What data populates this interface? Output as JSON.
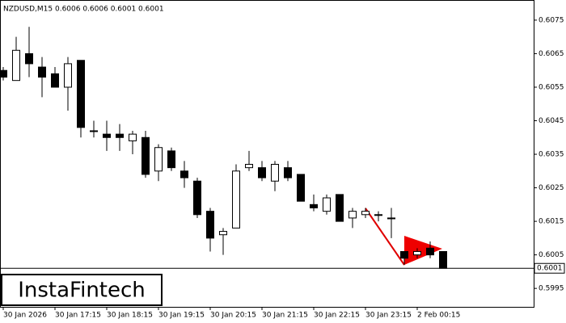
{
  "chart_data": {
    "type": "candlestick",
    "title": "NZDUSD,M15  0.6006 0.6006 0.6001 0.6001",
    "watermark": "InstaFintech",
    "current_price": 0.6001,
    "categories": [
      "30 Jan 2026",
      null,
      null,
      null,
      "30 Jan 17:15",
      null,
      null,
      null,
      "30 Jan 18:15",
      null,
      null,
      null,
      "30 Jan 19:15",
      null,
      null,
      null,
      "30 Jan 20:15",
      null,
      null,
      null,
      "30 Jan 21:15",
      null,
      null,
      null,
      "30 Jan 22:15",
      null,
      null,
      null,
      "30 Jan 23:15",
      null,
      null,
      null,
      "2 Feb 00:15",
      null,
      null
    ],
    "open": [
      0.606,
      0.6057,
      0.6065,
      0.6061,
      0.6059,
      0.6055,
      0.6063,
      0.6042,
      0.6041,
      0.6041,
      0.6039,
      0.604,
      0.603,
      0.6036,
      0.603,
      0.6027,
      0.6018,
      0.6011,
      0.6013,
      0.6031,
      0.6031,
      0.6027,
      0.6031,
      0.6029,
      0.602,
      0.6018,
      0.6023,
      0.6016,
      0.6017,
      0.6017,
      0.6016,
      0.6006,
      0.6005,
      0.6007,
      0.6006
    ],
    "high": [
      0.6061,
      0.607,
      0.6073,
      0.6064,
      0.6061,
      0.6064,
      0.6063,
      0.6045,
      0.6045,
      0.6044,
      0.6042,
      0.6042,
      0.6038,
      0.6037,
      0.6033,
      0.6028,
      0.6019,
      0.6013,
      0.6032,
      0.6036,
      0.6033,
      0.6033,
      0.6033,
      0.6029,
      0.6023,
      0.6023,
      0.6023,
      0.6019,
      0.6019,
      0.6018,
      0.6019,
      0.6006,
      0.6007,
      0.6009,
      0.6006
    ],
    "low": [
      0.6057,
      0.6057,
      0.6058,
      0.6052,
      0.6055,
      0.6048,
      0.604,
      0.604,
      0.6036,
      0.6036,
      0.6035,
      0.6028,
      0.6027,
      0.603,
      0.6025,
      0.6016,
      0.6006,
      0.6005,
      0.6013,
      0.603,
      0.6027,
      0.6024,
      0.6027,
      0.6021,
      0.6018,
      0.6017,
      0.6015,
      0.6013,
      0.6016,
      0.6015,
      0.601,
      0.6002,
      0.6004,
      0.6004,
      0.6001
    ],
    "close": [
      0.6058,
      0.6066,
      0.6062,
      0.6058,
      0.6055,
      0.6062,
      0.6043,
      0.6042,
      0.604,
      0.604,
      0.6041,
      0.6029,
      0.6037,
      0.6031,
      0.6028,
      0.6017,
      0.601,
      0.6012,
      0.603,
      0.6032,
      0.6028,
      0.6032,
      0.6028,
      0.6021,
      0.6019,
      0.6022,
      0.6015,
      0.6018,
      0.6018,
      0.6017,
      0.6016,
      0.6004,
      0.6006,
      0.6005,
      0.6001
    ],
    "ylim": [
      0.59895,
      0.6081
    ],
    "yticks": [
      0.5995,
      0.6005,
      0.6015,
      0.6025,
      0.6035,
      0.6045,
      0.6055,
      0.6065,
      0.6075
    ],
    "up_color": "#ffffff",
    "down_color": "#000000"
  }
}
